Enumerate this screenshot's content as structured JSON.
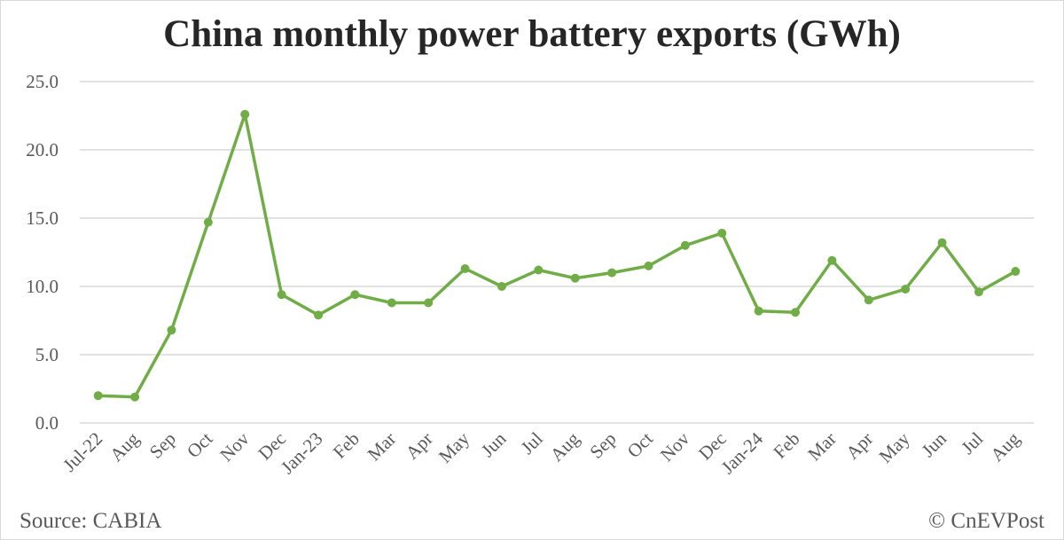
{
  "chart_data": {
    "type": "line",
    "title": "China monthly power battery exports (GWh)",
    "categories": [
      "Jul-22",
      "Aug",
      "Sep",
      "Oct",
      "Nov",
      "Dec",
      "Jan-23",
      "Feb",
      "Mar",
      "Apr",
      "May",
      "Jun",
      "Jul",
      "Aug",
      "Sep",
      "Oct",
      "Nov",
      "Dec",
      "Jan-24",
      "Feb",
      "Mar",
      "Apr",
      "May",
      "Jun",
      "Jul",
      "Aug"
    ],
    "values": [
      2.0,
      1.9,
      6.8,
      14.7,
      22.6,
      9.4,
      7.9,
      9.4,
      8.8,
      8.8,
      11.3,
      10.0,
      11.2,
      10.6,
      11.0,
      11.5,
      13.0,
      13.9,
      8.2,
      8.1,
      11.9,
      9.0,
      9.8,
      13.2,
      9.6,
      11.1
    ],
    "ylim": [
      0,
      25
    ],
    "yticks": [
      "0.0",
      "5.0",
      "10.0",
      "15.0",
      "20.0",
      "25.0"
    ],
    "grid": true,
    "line_color": "#70ad47",
    "markers": true
  },
  "footer": {
    "source": "Source: CABIA",
    "credit": "© CnEVPost"
  }
}
